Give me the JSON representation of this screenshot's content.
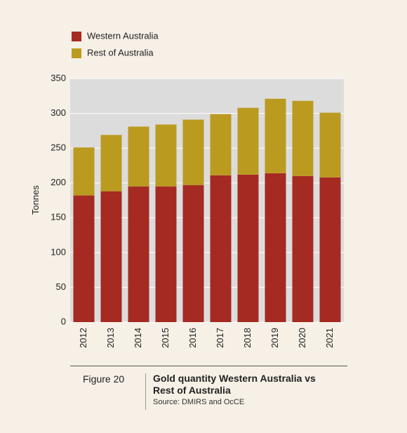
{
  "chart_data": {
    "type": "stacked_bar",
    "title": "Gold quantity Western Australia vs Rest of Australia",
    "figure_label": "Figure 20",
    "source": "Source: DMIRS and OcCE",
    "y_label": "Tonnes",
    "categories": [
      "2012",
      "2013",
      "2014",
      "2015",
      "2016",
      "2017",
      "2018",
      "2019",
      "2020",
      "2021"
    ],
    "series": [
      {
        "name": "Western Australia",
        "color": "#a52a22",
        "values": [
          182,
          188,
          195,
          195,
          197,
          211,
          212,
          214,
          210,
          208
        ]
      },
      {
        "name": "Rest of Australia",
        "color": "#bb9a20",
        "values": [
          69,
          81,
          86,
          89,
          94,
          88,
          96,
          107,
          108,
          93
        ]
      }
    ],
    "ylim": [
      0,
      350
    ],
    "yticks": [
      0,
      50,
      100,
      150,
      200,
      250,
      300,
      350
    ],
    "grid": true
  }
}
